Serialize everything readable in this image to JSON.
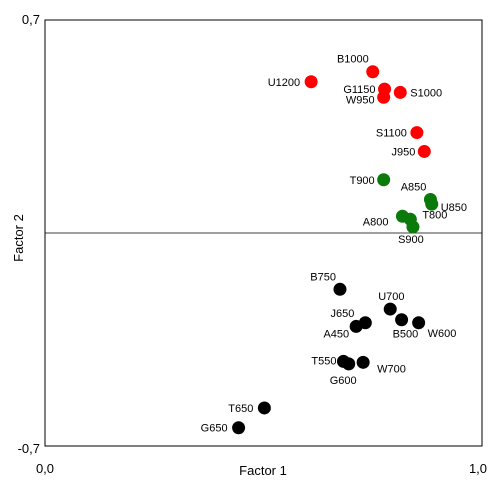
{
  "chart_data": {
    "type": "scatter",
    "title": "",
    "xlabel": "Factor 1",
    "ylabel": "Factor 2",
    "xlim": [
      0.0,
      1.0
    ],
    "ylim": [
      -0.7,
      0.7
    ],
    "x_ticks": [
      "0,0",
      "1,0"
    ],
    "y_ticks": [
      "0,7",
      "-0,7"
    ],
    "reference_line_y": 0,
    "grid": false,
    "legend": "none",
    "series": [
      {
        "color": "#ff0000",
        "points": [
          {
            "label": "B1000",
            "x": 0.75,
            "y": 0.53
          },
          {
            "label": "U1200",
            "x": 0.609,
            "y": 0.497
          },
          {
            "label": "G1150",
            "x": 0.777,
            "y": 0.473
          },
          {
            "label": "S1000",
            "x": 0.813,
            "y": 0.462
          },
          {
            "label": "W950",
            "x": 0.775,
            "y": 0.446
          },
          {
            "label": "S1100",
            "x": 0.851,
            "y": 0.33
          },
          {
            "label": "J950",
            "x": 0.868,
            "y": 0.268
          }
        ]
      },
      {
        "color": "#0a7a0a",
        "points": [
          {
            "label": "T900",
            "x": 0.775,
            "y": 0.175
          },
          {
            "label": "A850",
            "x": 0.882,
            "y": 0.11
          },
          {
            "label": "U850",
            "x": 0.885,
            "y": 0.095
          },
          {
            "label": "A800",
            "x": 0.818,
            "y": 0.055
          },
          {
            "label": "T800",
            "x": 0.836,
            "y": 0.045
          },
          {
            "label": "S900",
            "x": 0.842,
            "y": 0.02
          }
        ]
      },
      {
        "color": "#000000",
        "points": [
          {
            "label": "B750",
            "x": 0.675,
            "y": -0.185
          },
          {
            "label": "U700",
            "x": 0.79,
            "y": -0.25
          },
          {
            "label": "J650",
            "x": 0.733,
            "y": -0.295
          },
          {
            "label": "B500",
            "x": 0.816,
            "y": -0.285
          },
          {
            "label": "W600",
            "x": 0.855,
            "y": -0.295
          },
          {
            "label": "A450",
            "x": 0.712,
            "y": -0.307
          },
          {
            "label": "T550",
            "x": 0.683,
            "y": -0.422
          },
          {
            "label": "G600",
            "x": 0.695,
            "y": -0.43
          },
          {
            "label": "W700",
            "x": 0.728,
            "y": -0.425
          },
          {
            "label": "T650",
            "x": 0.502,
            "y": -0.575
          },
          {
            "label": "G650",
            "x": 0.443,
            "y": -0.64
          }
        ]
      }
    ]
  }
}
